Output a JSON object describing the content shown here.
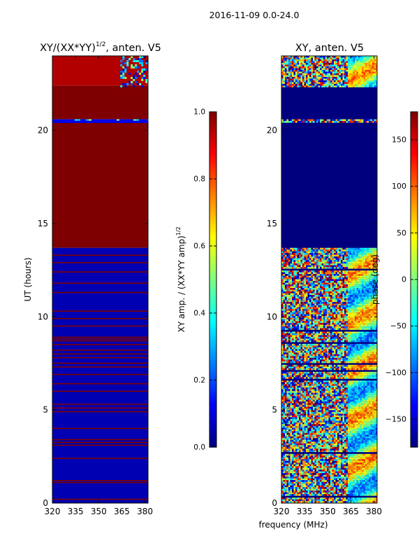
{
  "figure": {
    "suptitle": "2016-11-09 0.0-24.0",
    "xlabel": "frequency (MHz)"
  },
  "colormap": [
    "#00007f",
    "#0000ff",
    "#007fff",
    "#00ffff",
    "#7fff7f",
    "#ffff00",
    "#ff7f00",
    "#ff0000",
    "#7f0000"
  ],
  "chart_data": [
    {
      "type": "heatmap",
      "title": "XY/(XX*YY)",
      "title_superscript": "1/2",
      "title_suffix": ", anten. V5",
      "ylabel": "UT (hours)",
      "xticks": [
        320,
        335,
        350,
        365,
        380
      ],
      "yticks": [
        0,
        5,
        10,
        15,
        20
      ],
      "xlim": [
        320,
        382
      ],
      "ylim": [
        0,
        24
      ],
      "colorbar": {
        "label": "XY amp. / (XX*YY amp)",
        "label_superscript": "1/2",
        "ticks": [
          "0.0",
          "0.2",
          "0.4",
          "0.6",
          "0.8",
          "1.0"
        ],
        "range": [
          0,
          1
        ]
      },
      "segments": [
        {
          "from": 22.4,
          "to": 24.0,
          "desc": "mostly dark red with blue/cyan speckle above 365 MHz",
          "value": 0.95
        },
        {
          "from": 20.6,
          "to": 22.4,
          "desc": "saturated",
          "value": 1.0
        },
        {
          "from": 20.4,
          "to": 20.6,
          "desc": "blue band",
          "value": 0.1
        },
        {
          "from": 13.7,
          "to": 20.4,
          "desc": "saturated",
          "value": 1.0
        },
        {
          "from": 0.0,
          "to": 13.7,
          "desc": "low, with thin saturated rows",
          "value": 0.05
        }
      ],
      "bright_rows_hours": [
        0.2,
        1.1,
        1.2,
        2.4,
        3.1,
        3.25,
        3.4,
        4.0,
        4.9,
        5.1,
        5.3,
        6.0,
        6.4,
        6.9,
        7.3,
        7.5,
        7.8,
        8.0,
        8.2,
        8.5,
        8.7,
        8.8,
        8.9,
        9.5,
        9.9,
        10.3,
        11.3,
        11.8,
        12.4,
        12.9,
        13.3
      ]
    },
    {
      "type": "heatmap",
      "title": "XY, anten. V5",
      "xticks": [
        320,
        335,
        350,
        365,
        380
      ],
      "yticks": [
        0,
        5,
        10,
        15,
        20
      ],
      "xlim": [
        320,
        382
      ],
      "ylim": [
        0,
        24
      ],
      "colorbar": {
        "label": "phase (deg)",
        "ticks": [
          "−150",
          "−100",
          "−50",
          "0",
          "50",
          "100",
          "150"
        ],
        "tick_values": [
          -150,
          -100,
          -50,
          0,
          50,
          100,
          150
        ],
        "range": [
          -180,
          180
        ]
      },
      "segments": [
        {
          "from": 22.4,
          "to": 24.0,
          "desc": "random phase noise"
        },
        {
          "from": 13.7,
          "to": 22.4,
          "desc": "constant dark blue (-180 deg), thin noise band near 20.5 h"
        },
        {
          "from": 0.0,
          "to": 13.7,
          "desc": "random phase noise, coherent structure above 365 MHz"
        }
      ]
    }
  ]
}
